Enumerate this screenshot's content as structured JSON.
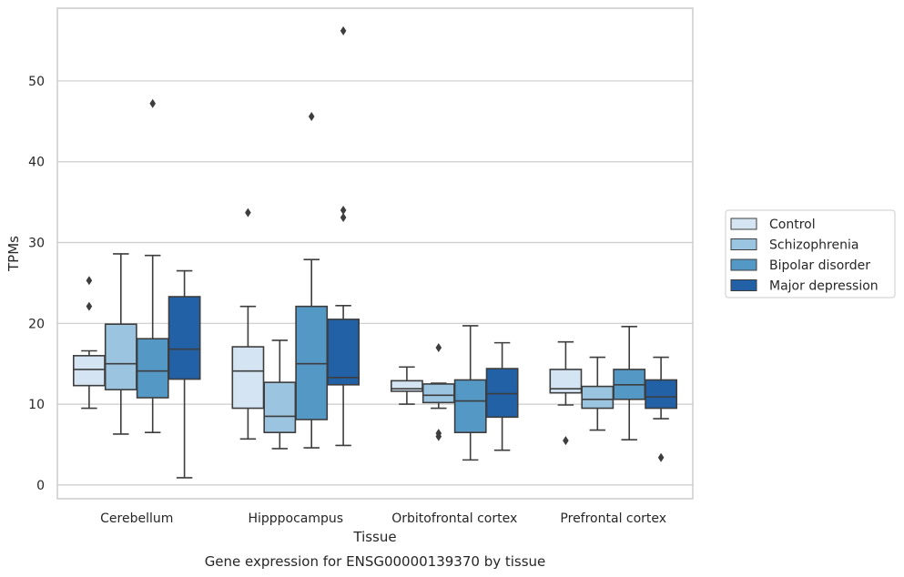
{
  "chart_data": {
    "type": "boxplot",
    "xlabel": "Tissue",
    "ylabel": "TPMs",
    "caption": "Gene expression for ENSG00000139370 by tissue",
    "ylim": [
      -1.7,
      59
    ],
    "yticks": [
      0,
      10,
      20,
      30,
      40,
      50
    ],
    "grid": "horizontal",
    "legend_position": "right",
    "categories": [
      "Cerebellum",
      "Hipppocampus",
      "Orbitofrontal cortex",
      "Prefrontal cortex"
    ],
    "series": [
      {
        "name": "Control",
        "color": "#d4e4f2",
        "boxes": [
          {
            "whislo": 9.5,
            "q1": 12.3,
            "med": 14.3,
            "q3": 16.0,
            "whishi": 16.6,
            "fliers": [
              22.1,
              25.3
            ]
          },
          {
            "whislo": 5.7,
            "q1": 9.5,
            "med": 14.1,
            "q3": 17.1,
            "whishi": 22.1,
            "fliers": [
              33.7
            ]
          },
          {
            "whislo": 10.0,
            "q1": 11.6,
            "med": 11.9,
            "q3": 12.9,
            "whishi": 14.6,
            "fliers": []
          },
          {
            "whislo": 9.9,
            "q1": 11.4,
            "med": 11.9,
            "q3": 14.3,
            "whishi": 17.7,
            "fliers": [
              5.5
            ]
          }
        ]
      },
      {
        "name": "Schizophrenia",
        "color": "#9bc4e0",
        "boxes": [
          {
            "whislo": 6.3,
            "q1": 11.8,
            "med": 15.0,
            "q3": 19.9,
            "whishi": 28.6,
            "fliers": []
          },
          {
            "whislo": 4.5,
            "q1": 6.5,
            "med": 8.5,
            "q3": 12.7,
            "whishi": 17.9,
            "fliers": []
          },
          {
            "whislo": 9.5,
            "q1": 10.2,
            "med": 11.1,
            "q3": 12.5,
            "whishi": 12.6,
            "fliers": [
              6.0,
              6.4,
              17.0
            ]
          },
          {
            "whislo": 6.8,
            "q1": 9.5,
            "med": 10.6,
            "q3": 12.2,
            "whishi": 15.8,
            "fliers": []
          }
        ]
      },
      {
        "name": "Bipolar disorder",
        "color": "#5498c6",
        "boxes": [
          {
            "whislo": 6.5,
            "q1": 10.8,
            "med": 14.1,
            "q3": 18.1,
            "whishi": 28.4,
            "fliers": [
              47.2
            ]
          },
          {
            "whislo": 4.6,
            "q1": 8.1,
            "med": 15.0,
            "q3": 22.1,
            "whishi": 27.9,
            "fliers": [
              45.6
            ]
          },
          {
            "whislo": 3.1,
            "q1": 6.5,
            "med": 10.4,
            "q3": 13.0,
            "whishi": 19.7,
            "fliers": []
          },
          {
            "whislo": 5.6,
            "q1": 10.6,
            "med": 12.4,
            "q3": 14.3,
            "whishi": 19.6,
            "fliers": []
          }
        ]
      },
      {
        "name": "Major depression",
        "color": "#2261a6",
        "boxes": [
          {
            "whislo": 0.9,
            "q1": 13.1,
            "med": 16.8,
            "q3": 23.3,
            "whishi": 26.5,
            "fliers": []
          },
          {
            "whislo": 4.9,
            "q1": 12.4,
            "med": 13.3,
            "q3": 20.5,
            "whishi": 22.2,
            "fliers": [
              33.1,
              34.0,
              56.2
            ]
          },
          {
            "whislo": 4.3,
            "q1": 8.4,
            "med": 11.3,
            "q3": 14.4,
            "whishi": 17.6,
            "fliers": []
          },
          {
            "whislo": 8.2,
            "q1": 9.5,
            "med": 10.9,
            "q3": 13.0,
            "whishi": 15.8,
            "fliers": [
              3.4
            ]
          }
        ]
      }
    ]
  }
}
